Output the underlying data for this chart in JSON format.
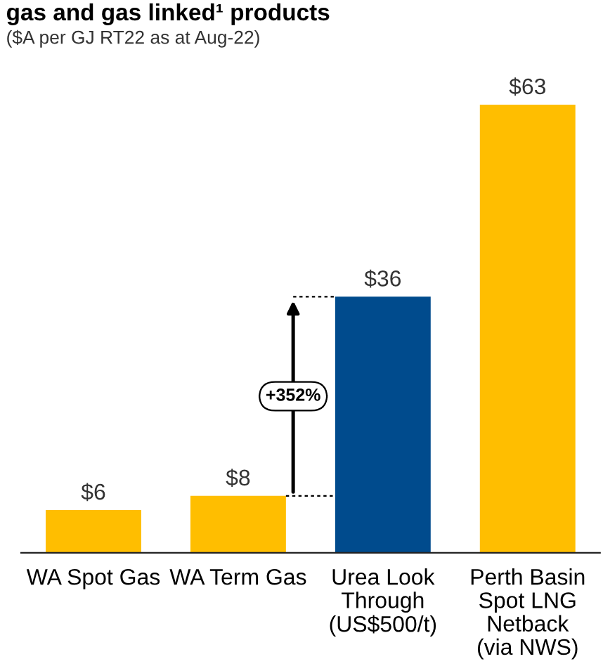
{
  "chart_data": {
    "type": "bar",
    "title": "gas and gas linked¹ products",
    "subtitle": "($A per GJ RT22 as at Aug-22)",
    "categories": [
      "WA Spot Gas",
      "WA Term Gas",
      "Urea Look\nThrough\n(US$500/t)",
      "Perth Basin\nSpot LNG\nNetback\n(via NWS)"
    ],
    "values": [
      6,
      8,
      36,
      63
    ],
    "colors": [
      "#ffbe00",
      "#ffbe00",
      "#004b8d",
      "#ffbe00"
    ],
    "value_labels": [
      "$6",
      "$8",
      "$36",
      "$63"
    ],
    "annotations": [
      "+352%"
    ],
    "grid": false,
    "legend": false
  }
}
